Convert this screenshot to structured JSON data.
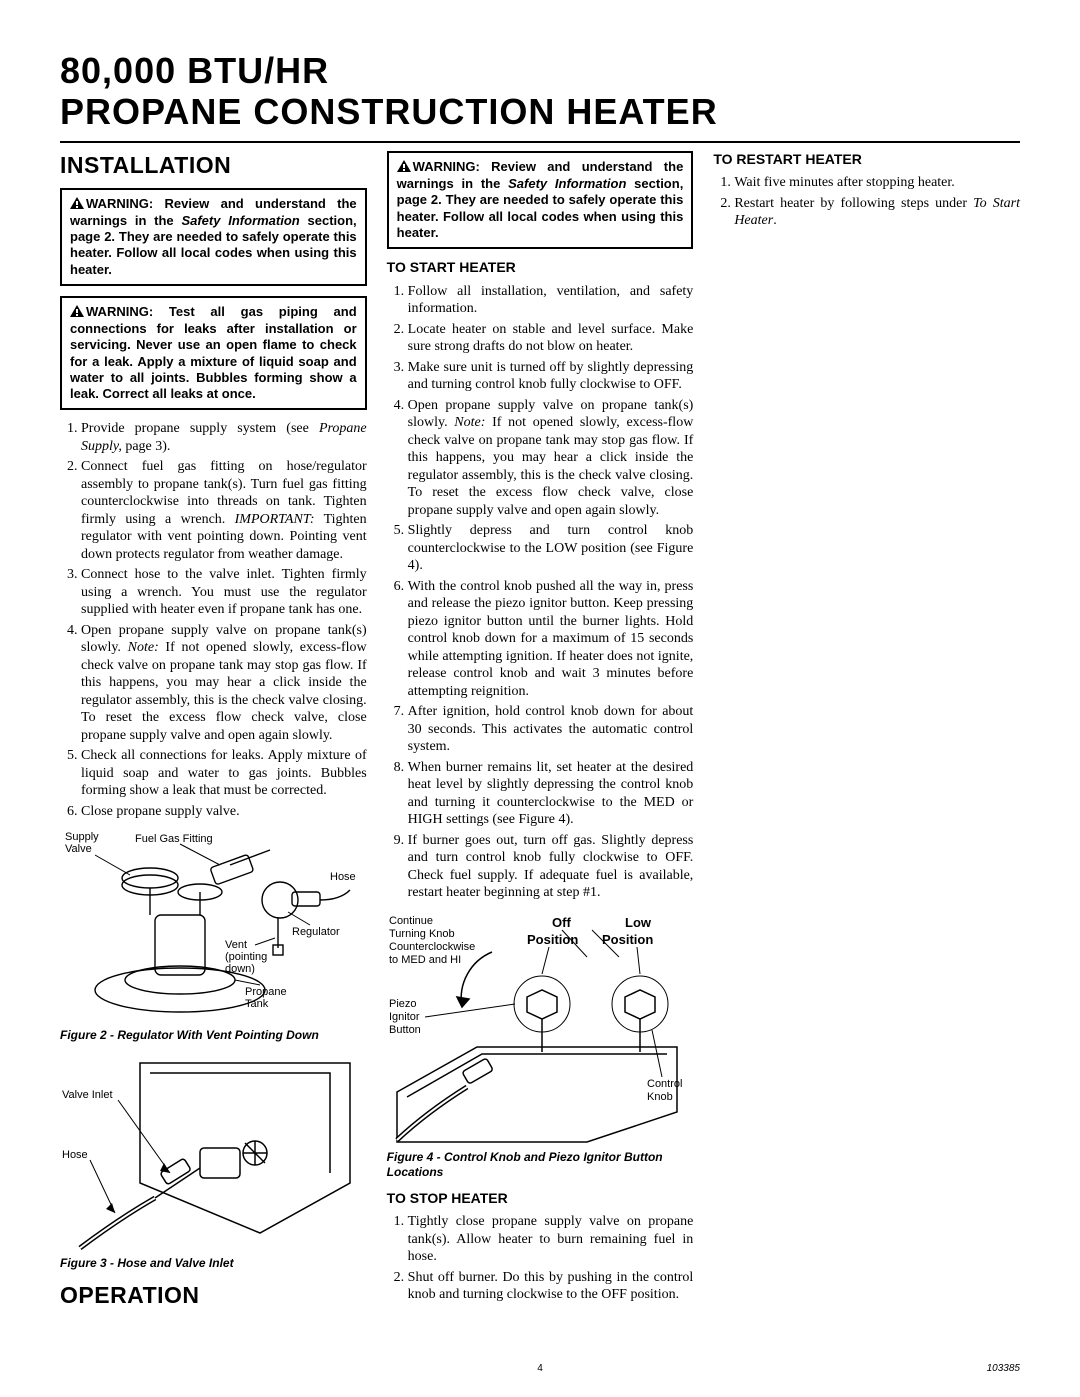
{
  "title_line1": "80,000 BTU/HR",
  "title_line2": "PROPANE CONSTRUCTION HEATER",
  "sections": {
    "installation": {
      "heading": "INSTALLATION",
      "warning1_prefix": "WARNING: Review and understand the warnings in the ",
      "warning1_italic": "Safety Information",
      "warning1_suffix": " section, page 2. They are needed to safely operate this heater. Follow all local codes when using this heater.",
      "warning2": "WARNING: Test all gas piping and connections for leaks after installation or servicing. Never use an open flame to check for a leak. Apply a mixture of liquid soap and water to all joints. Bubbles forming show a leak. Correct all leaks at once.",
      "steps": [
        {
          "pre": "Provide propane supply system (see ",
          "it": "Propane Supply,",
          "post": " page 3)."
        },
        {
          "pre": "Connect fuel gas fitting on hose/regulator assembly to propane tank(s). Turn fuel gas fitting counterclockwise into threads on tank. Tighten firmly using a wrench. ",
          "it": "IMPORTANT:",
          "post": " Tighten regulator with vent pointing down. Pointing vent down protects regulator from weather damage."
        },
        {
          "pre": "Connect hose to the valve inlet. Tighten firmly using a wrench. You must use the regulator supplied with heater even if propane tank has one.",
          "it": "",
          "post": ""
        },
        {
          "pre": "Open propane supply valve on propane tank(s) slowly. ",
          "it": "Note:",
          "post": " If not opened slowly, excess-flow check valve on propane tank may stop gas flow. If this happens, you may hear a click inside the regulator assembly, this is the check valve closing. To reset the excess flow check valve, close propane supply valve and open again slowly."
        },
        {
          "pre": "Check all connections for leaks. Apply mixture of liquid soap and water to gas joints. Bubbles forming show a leak that must be corrected.",
          "it": "",
          "post": ""
        },
        {
          "pre": "Close propane supply valve.",
          "it": "",
          "post": ""
        }
      ]
    },
    "operation": {
      "heading": "OPERATION",
      "warning_prefix": "WARNING: Review and understand the warnings in the ",
      "warning_italic": "Safety Information",
      "warning_suffix": " section, page 2. They are needed to safely operate this heater. Follow all local codes when using this heater.",
      "start_heading": "TO START HEATER",
      "start_steps": [
        {
          "pre": "Follow all installation, ventilation, and safety information.",
          "it": "",
          "post": ""
        },
        {
          "pre": "Locate heater on stable and level surface. Make sure strong drafts do not blow on heater.",
          "it": "",
          "post": ""
        },
        {
          "pre": "Make sure unit is turned off by slightly depressing and turning control knob fully clockwise to OFF.",
          "it": "",
          "post": ""
        },
        {
          "pre": "Open propane supply valve on propane tank(s) slowly. ",
          "it": "Note:",
          "post": " If not opened slowly, excess-flow check valve on propane tank may stop gas flow. If this happens, you may hear a click inside the regulator assembly, this is the check valve closing. To reset the excess flow check valve, close propane supply valve and open again slowly."
        },
        {
          "pre": "Slightly depress and turn control knob counterclockwise to the LOW position (see Figure 4).",
          "it": "",
          "post": ""
        },
        {
          "pre": "With the control knob pushed all the way in, press and release the piezo ignitor button. Keep pressing piezo ignitor button until the burner lights. Hold control knob down for a maximum of 15 seconds while attempting ignition. If heater does not ignite, release control knob and wait 3 minutes before attempting reignition.",
          "it": "",
          "post": ""
        },
        {
          "pre": "After ignition, hold control knob down for about 30 seconds. This activates the automatic control system.",
          "it": "",
          "post": ""
        },
        {
          "pre": "When burner remains lit, set heater at the desired heat level by slightly depressing the control knob and turning it counterclockwise to the MED or HIGH settings (see Figure 4).",
          "it": "",
          "post": ""
        },
        {
          "pre": "If burner goes out, turn off gas. Slightly depress and turn control knob fully clockwise to OFF. Check fuel supply. If adequate fuel is available, restart heater beginning at step #1.",
          "it": "",
          "post": ""
        }
      ],
      "stop_heading": "TO STOP HEATER",
      "stop_steps": [
        {
          "pre": "Tightly close propane supply valve on propane tank(s). Allow heater to burn remaining fuel in hose.",
          "it": "",
          "post": ""
        },
        {
          "pre": "Shut off burner. Do this by pushing in the control knob and turning clockwise to the OFF position.",
          "it": "",
          "post": ""
        }
      ],
      "restart_heading": "TO RESTART HEATER",
      "restart_steps": [
        {
          "pre": "Wait five minutes after stopping heater.",
          "it": "",
          "post": ""
        },
        {
          "pre": "Restart heater by following steps under ",
          "it": "To Start Heater",
          "post": "."
        }
      ]
    }
  },
  "figures": {
    "fig2": {
      "caption": "Figure 2 - Regulator With Vent Pointing Down",
      "labels": {
        "supply_valve_l1": "Supply",
        "supply_valve_l2": "Valve",
        "fuel_gas": "Fuel Gas Fitting",
        "hose": "Hose",
        "vent_l1": "Vent",
        "vent_l2": "(pointing",
        "vent_l3": "down)",
        "regulator": "Regulator",
        "propane_l1": "Propane",
        "propane_l2": "Tank"
      }
    },
    "fig3": {
      "caption": "Figure 3 - Hose and Valve Inlet",
      "labels": {
        "valve_inlet": "Valve Inlet",
        "hose": "Hose"
      }
    },
    "fig4": {
      "caption": "Figure 4 - Control Knob and Piezo Ignitor Button Locations",
      "labels": {
        "continue_l1": "Continue",
        "continue_l2": "Turning Knob",
        "continue_l3": "Counterclockwise",
        "continue_l4": "to MED and HI",
        "off_l1": "Off",
        "off_l2": "Position",
        "low_l1": "Low",
        "low_l2": "Position",
        "piezo_l1": "Piezo",
        "piezo_l2": "Ignitor",
        "piezo_l3": "Button",
        "control_l1": "Control",
        "control_l2": "Knob"
      }
    }
  },
  "footer": {
    "page": "4",
    "doc_id": "103385"
  },
  "colors": {
    "text": "#000000",
    "bg": "#ffffff",
    "rule": "#000000"
  }
}
